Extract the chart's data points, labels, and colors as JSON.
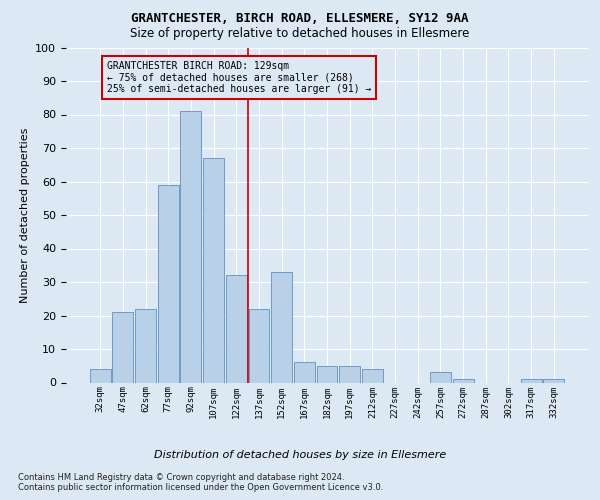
{
  "title1": "GRANTCHESTER, BIRCH ROAD, ELLESMERE, SY12 9AA",
  "title2": "Size of property relative to detached houses in Ellesmere",
  "xlabel": "Distribution of detached houses by size in Ellesmere",
  "ylabel": "Number of detached properties",
  "footnote1": "Contains HM Land Registry data © Crown copyright and database right 2024.",
  "footnote2": "Contains public sector information licensed under the Open Government Licence v3.0.",
  "annotation_line1": "GRANTCHESTER BIRCH ROAD: 129sqm",
  "annotation_line2": "← 75% of detached houses are smaller (268)",
  "annotation_line3": "25% of semi-detached houses are larger (91) →",
  "bar_categories": [
    "32sqm",
    "47sqm",
    "62sqm",
    "77sqm",
    "92sqm",
    "107sqm",
    "122sqm",
    "137sqm",
    "152sqm",
    "167sqm",
    "182sqm",
    "197sqm",
    "212sqm",
    "227sqm",
    "242sqm",
    "257sqm",
    "272sqm",
    "287sqm",
    "302sqm",
    "317sqm",
    "332sqm"
  ],
  "bar_values": [
    4,
    21,
    22,
    59,
    81,
    67,
    32,
    22,
    33,
    6,
    5,
    5,
    4,
    0,
    0,
    3,
    1,
    0,
    0,
    1,
    1
  ],
  "bar_color": "#b8d0e8",
  "bar_edge_color": "#6090c0",
  "vline_color": "#cc0000",
  "background_color": "#dce8f4",
  "ylim": [
    0,
    100
  ],
  "grid_color": "#ffffff",
  "vline_pos": 6.5
}
